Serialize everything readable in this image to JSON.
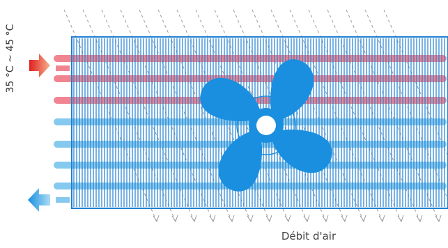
{
  "diagram": {
    "temperature_range": "35 °C ~ 45 °C",
    "airflow_label": "Débit d'air"
  },
  "colors": {
    "hot_tube": "#f08591",
    "cool_tube": "#86c9ee",
    "fins": "#1f7fd2",
    "fan": "#1a8fe0",
    "inlet_arrow": "#e8452e",
    "outlet_arrow": "#1a8fe0",
    "airflow_arrows": "#9a9a9a"
  }
}
